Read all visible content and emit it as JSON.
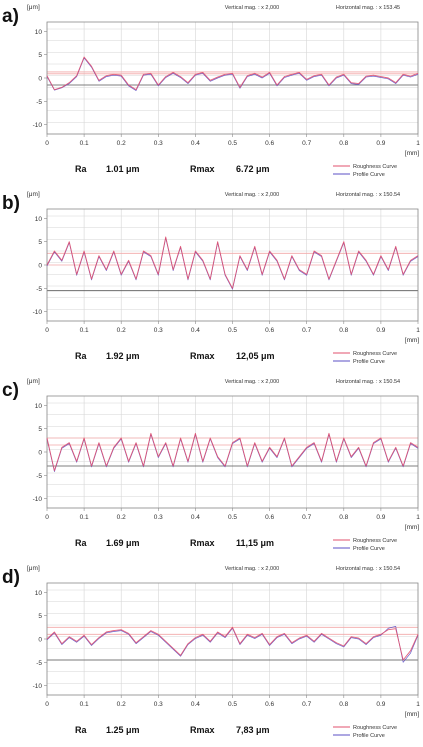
{
  "panel_header": {
    "y_unit": "[μm]",
    "x_unit": "[mm]"
  },
  "legend": {
    "roughness": "Roughness Curve",
    "profile": "Profile Curve"
  },
  "colors": {
    "roughness": "#e0506e",
    "profile": "#5b4fc4",
    "grid": "#d6d6d6",
    "frame": "#8a8a8a",
    "ref_red": "#f2a7a7",
    "ref_dark": "#555555"
  },
  "chart_data": [
    {
      "type": "line",
      "panel_label": "a)",
      "vertical_mag": "Vertical mag. : x 2,000",
      "horizontal_mag": "Horizontal mag. : x 153.45",
      "xlabel": "[mm]",
      "ylabel": "[μm]",
      "xlim": [
        0,
        1
      ],
      "ylim": [
        -12,
        12
      ],
      "x_ticks": [
        0,
        0.1,
        0.2,
        0.3,
        0.4,
        0.5,
        0.6,
        0.7,
        0.8,
        0.9,
        1
      ],
      "y_ticks": [
        10,
        5,
        0,
        -5,
        -10
      ],
      "grid": true,
      "reference_lines": [
        1.3,
        0.9,
        -1.5
      ],
      "stats": [
        {
          "label": "Ra",
          "value": "1.01 μm"
        },
        {
          "label": "Rmax",
          "value": "6.72 μm"
        }
      ],
      "series": [
        {
          "name": "Roughness Curve",
          "x": [
            0,
            0.02,
            0.04,
            0.06,
            0.08,
            0.1,
            0.12,
            0.14,
            0.16,
            0.18,
            0.2,
            0.22,
            0.24,
            0.26,
            0.28,
            0.3,
            0.32,
            0.34,
            0.36,
            0.38,
            0.4,
            0.42,
            0.44,
            0.46,
            0.48,
            0.5,
            0.52,
            0.54,
            0.56,
            0.58,
            0.6,
            0.62,
            0.64,
            0.66,
            0.68,
            0.7,
            0.72,
            0.74,
            0.76,
            0.78,
            0.8,
            0.82,
            0.84,
            0.86,
            0.88,
            0.9,
            0.92,
            0.94,
            0.96,
            0.98,
            1
          ],
          "y": [
            0.5,
            -2.5,
            -2,
            -1,
            0.5,
            4.5,
            2.5,
            -0.5,
            0.5,
            0.8,
            0.6,
            -1.5,
            -2.5,
            0.8,
            1,
            -1.5,
            0.3,
            1.2,
            0.3,
            -1,
            0.8,
            1.2,
            -0.5,
            0.2,
            0.8,
            1,
            -2,
            0.5,
            1,
            0.2,
            1.2,
            -1.5,
            0.3,
            0.8,
            1.2,
            -0.3,
            0.5,
            0.8,
            -1.5,
            0.2,
            0.8,
            -1,
            -1.2,
            0.4,
            0.6,
            0.3,
            0,
            -1,
            0.8,
            0.4,
            1
          ]
        },
        {
          "name": "Profile Curve",
          "x": [
            0,
            0.02,
            0.04,
            0.06,
            0.08,
            0.1,
            0.12,
            0.14,
            0.16,
            0.18,
            0.2,
            0.22,
            0.24,
            0.26,
            0.28,
            0.3,
            0.32,
            0.34,
            0.36,
            0.38,
            0.4,
            0.42,
            0.44,
            0.46,
            0.48,
            0.5,
            0.52,
            0.54,
            0.56,
            0.58,
            0.6,
            0.62,
            0.64,
            0.66,
            0.68,
            0.7,
            0.72,
            0.74,
            0.76,
            0.78,
            0.8,
            0.82,
            0.84,
            0.86,
            0.88,
            0.9,
            0.92,
            0.94,
            0.96,
            0.98,
            1
          ],
          "y": [
            0.3,
            -2.6,
            -2.1,
            -1.2,
            0.3,
            4.3,
            2.3,
            -0.7,
            0.3,
            0.6,
            0.4,
            -1.7,
            -2.7,
            0.6,
            0.8,
            -1.7,
            0.1,
            1,
            0.1,
            -1.2,
            0.6,
            1,
            -0.7,
            0,
            0.6,
            0.8,
            -2.2,
            0.3,
            0.8,
            0,
            1,
            -1.7,
            0.1,
            0.6,
            1,
            -0.5,
            0.3,
            0.6,
            -1.7,
            0,
            0.6,
            -1.2,
            -1.4,
            0.2,
            0.4,
            0.1,
            -0.2,
            -1.2,
            0.6,
            0.2,
            0.8
          ]
        }
      ]
    },
    {
      "type": "line",
      "panel_label": "b)",
      "vertical_mag": "Vertical mag. : x 2,000",
      "horizontal_mag": "Horizontal mag. : x 150.54",
      "xlabel": "[mm]",
      "ylabel": "[μm]",
      "xlim": [
        0,
        1
      ],
      "ylim": [
        -12,
        12
      ],
      "x_ticks": [
        0,
        0.1,
        0.2,
        0.3,
        0.4,
        0.5,
        0.6,
        0.7,
        0.8,
        0.9,
        1
      ],
      "y_ticks": [
        10,
        5,
        0,
        -5,
        -10
      ],
      "grid": true,
      "reference_lines": [
        2.5,
        0,
        -5.5
      ],
      "stats": [
        {
          "label": "Ra",
          "value": "1.92 μm"
        },
        {
          "label": "Rmax",
          "value": "12,05 μm"
        }
      ],
      "series": [
        {
          "name": "Roughness Curve",
          "x": [
            0,
            0.02,
            0.04,
            0.06,
            0.08,
            0.1,
            0.12,
            0.14,
            0.16,
            0.18,
            0.2,
            0.22,
            0.24,
            0.26,
            0.28,
            0.3,
            0.32,
            0.34,
            0.36,
            0.38,
            0.4,
            0.42,
            0.44,
            0.46,
            0.48,
            0.5,
            0.52,
            0.54,
            0.56,
            0.58,
            0.6,
            0.62,
            0.64,
            0.66,
            0.68,
            0.7,
            0.72,
            0.74,
            0.76,
            0.78,
            0.8,
            0.82,
            0.84,
            0.86,
            0.88,
            0.9,
            0.92,
            0.94,
            0.96,
            0.98,
            1
          ],
          "y": [
            0,
            3,
            1,
            5,
            -2,
            3,
            -3,
            2,
            -1,
            3,
            -2,
            1,
            -3,
            3,
            2,
            -2,
            6,
            -1,
            4,
            -3,
            3,
            1,
            -3,
            5,
            -2,
            -5,
            2,
            -1,
            4,
            -2,
            3,
            1,
            -3,
            2,
            -1,
            -2,
            3,
            2,
            -3,
            1,
            5,
            -2,
            3,
            1,
            -2,
            2,
            -1,
            4,
            -2,
            1,
            2
          ]
        },
        {
          "name": "Profile Curve",
          "x": [
            0,
            0.02,
            0.04,
            0.06,
            0.08,
            0.1,
            0.12,
            0.14,
            0.16,
            0.18,
            0.2,
            0.22,
            0.24,
            0.26,
            0.28,
            0.3,
            0.32,
            0.34,
            0.36,
            0.38,
            0.4,
            0.42,
            0.44,
            0.46,
            0.48,
            0.5,
            0.52,
            0.54,
            0.56,
            0.58,
            0.6,
            0.62,
            0.64,
            0.66,
            0.68,
            0.7,
            0.72,
            0.74,
            0.76,
            0.78,
            0.8,
            0.82,
            0.84,
            0.86,
            0.88,
            0.9,
            0.92,
            0.94,
            0.96,
            0.98,
            1
          ],
          "y": [
            -0.2,
            2.8,
            0.8,
            4.8,
            -2.2,
            2.8,
            -3.2,
            1.8,
            -1.2,
            2.8,
            -2.2,
            0.8,
            -3.2,
            2.8,
            1.8,
            -2.2,
            5.8,
            -1.2,
            3.8,
            -3.2,
            2.8,
            0.8,
            -3.2,
            4.8,
            -2.2,
            -5.2,
            1.8,
            -1.2,
            3.8,
            -2.2,
            2.8,
            0.8,
            -3.2,
            1.8,
            -1.2,
            -2.2,
            2.8,
            1.8,
            -3.2,
            0.8,
            4.8,
            -2.2,
            2.8,
            0.8,
            -2.2,
            1.8,
            -1.2,
            3.8,
            -2.2,
            0.8,
            1.8
          ]
        }
      ]
    },
    {
      "type": "line",
      "panel_label": "c)",
      "vertical_mag": "Vertical mag. : x 2,000",
      "horizontal_mag": "Horizontal mag. : x 150.54",
      "xlabel": "[mm]",
      "ylabel": "[μm]",
      "xlim": [
        0,
        1
      ],
      "ylim": [
        -12,
        12
      ],
      "x_ticks": [
        0,
        0.1,
        0.2,
        0.3,
        0.4,
        0.5,
        0.6,
        0.7,
        0.8,
        0.9,
        1
      ],
      "y_ticks": [
        10,
        5,
        0,
        -5,
        -10
      ],
      "grid": true,
      "reference_lines": [
        3,
        1.5,
        -3
      ],
      "stats": [
        {
          "label": "Ra",
          "value": "1.69 μm"
        },
        {
          "label": "Rmax",
          "value": "11,15 μm"
        }
      ],
      "series": [
        {
          "name": "Roughness Curve",
          "x": [
            0,
            0.02,
            0.04,
            0.06,
            0.08,
            0.1,
            0.12,
            0.14,
            0.16,
            0.18,
            0.2,
            0.22,
            0.24,
            0.26,
            0.28,
            0.3,
            0.32,
            0.34,
            0.36,
            0.38,
            0.4,
            0.42,
            0.44,
            0.46,
            0.48,
            0.5,
            0.52,
            0.54,
            0.56,
            0.58,
            0.6,
            0.62,
            0.64,
            0.66,
            0.68,
            0.7,
            0.72,
            0.74,
            0.76,
            0.78,
            0.8,
            0.82,
            0.84,
            0.86,
            0.88,
            0.9,
            0.92,
            0.94,
            0.96,
            0.98,
            1
          ],
          "y": [
            3,
            -4,
            1,
            2,
            -2,
            3,
            -3,
            2,
            -3,
            1,
            3,
            -2,
            2,
            -3,
            4,
            -1,
            2,
            -3,
            3,
            -2,
            4,
            -2,
            3,
            -1,
            -3,
            2,
            3,
            -3,
            2,
            -2,
            1,
            -1,
            3,
            -3,
            -1,
            1,
            2,
            -2,
            4,
            -2,
            3,
            -1,
            1,
            -3,
            2,
            3,
            -2,
            1,
            -3,
            2,
            1
          ]
        },
        {
          "name": "Profile Curve",
          "x": [
            0,
            0.02,
            0.04,
            0.06,
            0.08,
            0.1,
            0.12,
            0.14,
            0.16,
            0.18,
            0.2,
            0.22,
            0.24,
            0.26,
            0.28,
            0.3,
            0.32,
            0.34,
            0.36,
            0.38,
            0.4,
            0.42,
            0.44,
            0.46,
            0.48,
            0.5,
            0.52,
            0.54,
            0.56,
            0.58,
            0.6,
            0.62,
            0.64,
            0.66,
            0.68,
            0.7,
            0.72,
            0.74,
            0.76,
            0.78,
            0.8,
            0.82,
            0.84,
            0.86,
            0.88,
            0.9,
            0.92,
            0.94,
            0.96,
            0.98,
            1
          ],
          "y": [
            2.8,
            -4.2,
            0.8,
            1.8,
            -2.2,
            2.8,
            -3.2,
            1.8,
            -3.2,
            0.8,
            2.8,
            -2.2,
            1.8,
            -3.2,
            3.8,
            -1.2,
            1.8,
            -3.2,
            2.8,
            -2.2,
            3.8,
            -2.2,
            2.8,
            -1.2,
            -3.2,
            1.8,
            2.8,
            -3.2,
            1.8,
            -2.2,
            0.8,
            -1.2,
            2.8,
            -3.2,
            -1.2,
            0.8,
            1.8,
            -2.2,
            3.8,
            -2.2,
            2.8,
            -1.2,
            0.8,
            -3.2,
            1.8,
            2.8,
            -2.2,
            0.8,
            -3.2,
            1.8,
            0.8
          ]
        }
      ]
    },
    {
      "type": "line",
      "panel_label": "d)",
      "vertical_mag": "Vertical mag. : x 2,000",
      "horizontal_mag": "Horizontal mag. : x 150.54",
      "xlabel": "[mm]",
      "ylabel": "[μm]",
      "xlim": [
        0,
        1
      ],
      "ylim": [
        -12,
        12
      ],
      "x_ticks": [
        0,
        0.1,
        0.2,
        0.3,
        0.4,
        0.5,
        0.6,
        0.7,
        0.8,
        0.9,
        1
      ],
      "y_ticks": [
        10,
        5,
        0,
        -5,
        -10
      ],
      "grid": true,
      "reference_lines": [
        2.5,
        1,
        -4.5
      ],
      "stats": [
        {
          "label": "Ra",
          "value": "1.25 μm"
        },
        {
          "label": "Rmax",
          "value": "7,83 μm"
        }
      ],
      "series": [
        {
          "name": "Roughness Curve",
          "x": [
            0,
            0.02,
            0.04,
            0.06,
            0.08,
            0.1,
            0.12,
            0.14,
            0.16,
            0.18,
            0.2,
            0.22,
            0.24,
            0.26,
            0.28,
            0.3,
            0.32,
            0.34,
            0.36,
            0.38,
            0.4,
            0.42,
            0.44,
            0.46,
            0.48,
            0.5,
            0.52,
            0.54,
            0.56,
            0.58,
            0.6,
            0.62,
            0.64,
            0.66,
            0.68,
            0.7,
            0.72,
            0.74,
            0.76,
            0.78,
            0.8,
            0.82,
            0.84,
            0.86,
            0.88,
            0.9,
            0.92,
            0.94,
            0.96,
            0.98,
            1
          ],
          "y": [
            0,
            1.5,
            -1,
            0.5,
            -0.5,
            0.8,
            -1.2,
            0.3,
            1.5,
            1.8,
            2,
            1.2,
            -0.8,
            0.5,
            1.8,
            1,
            -0.5,
            -2,
            -3.5,
            -1,
            0.3,
            1,
            -0.5,
            1.5,
            0.5,
            2.5,
            -1,
            1,
            0.3,
            1.2,
            -1.2,
            0.5,
            1.2,
            -0.8,
            0.2,
            0.8,
            -0.5,
            1.2,
            0.2,
            -0.8,
            -1.5,
            0.5,
            0.2,
            -1,
            0.5,
            1,
            2,
            2.2,
            -4.5,
            -2.5,
            1
          ]
        },
        {
          "name": "Profile Curve",
          "x": [
            0,
            0.02,
            0.04,
            0.06,
            0.08,
            0.1,
            0.12,
            0.14,
            0.16,
            0.18,
            0.2,
            0.22,
            0.24,
            0.26,
            0.28,
            0.3,
            0.32,
            0.34,
            0.36,
            0.38,
            0.4,
            0.42,
            0.44,
            0.46,
            0.48,
            0.5,
            0.52,
            0.54,
            0.56,
            0.58,
            0.6,
            0.62,
            0.64,
            0.66,
            0.68,
            0.7,
            0.72,
            0.74,
            0.76,
            0.78,
            0.8,
            0.82,
            0.84,
            0.86,
            0.88,
            0.9,
            0.92,
            0.94,
            0.96,
            0.98,
            1
          ],
          "y": [
            -0.2,
            1.3,
            -1.2,
            0.3,
            -0.7,
            0.6,
            -1.4,
            0.1,
            1.3,
            1.6,
            1.8,
            1,
            -1,
            0.3,
            1.6,
            0.8,
            -0.7,
            -2.2,
            -3.7,
            -1.2,
            0.1,
            0.8,
            -0.7,
            1.3,
            0.3,
            2.3,
            -1.2,
            0.8,
            0.1,
            1,
            -1.4,
            0.3,
            1,
            -1,
            0,
            0.6,
            -0.7,
            1,
            0,
            -1,
            -1.7,
            0.3,
            0,
            -1.2,
            0.3,
            0.8,
            2.3,
            2.7,
            -5,
            -3,
            0.8
          ]
        }
      ]
    }
  ]
}
